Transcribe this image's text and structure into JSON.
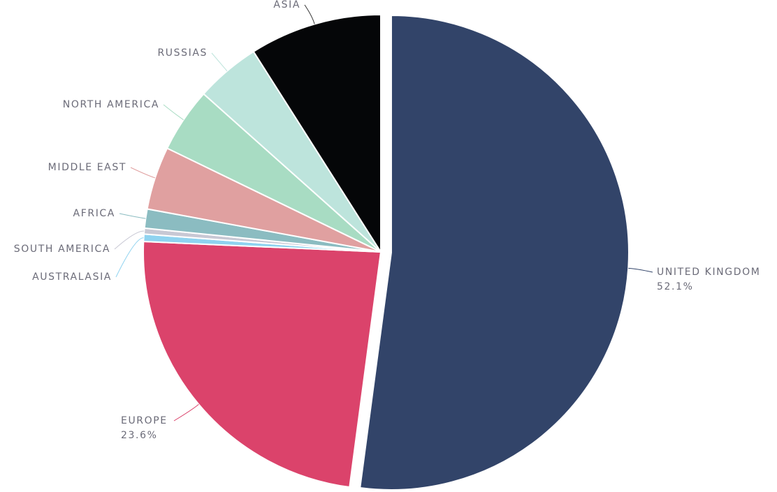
{
  "chart_data": {
    "type": "pie",
    "categories": [
      "UNITED KINGDOM",
      "EUROPE",
      "AUSTRALASIA",
      "SOUTH AMERICA",
      "AFRICA",
      "MIDDLE EAST",
      "NORTH AMERICA",
      "RUSSIAS",
      "ASIA"
    ],
    "values": [
      52.1,
      23.6,
      0.5,
      0.4,
      1.3,
      4.3,
      4.4,
      4.4,
      9.0
    ],
    "value_labels": [
      "52.1%",
      "23.6%",
      null,
      null,
      null,
      null,
      null,
      null,
      null
    ],
    "colors": [
      "#324469",
      "#db436b",
      "#8fd3f0",
      "#c8c8d4",
      "#8bbcc1",
      "#e0a0a0",
      "#a8dcc3",
      "#bde4dc",
      "#050608"
    ],
    "exploded": "UNITED KINGDOM"
  }
}
